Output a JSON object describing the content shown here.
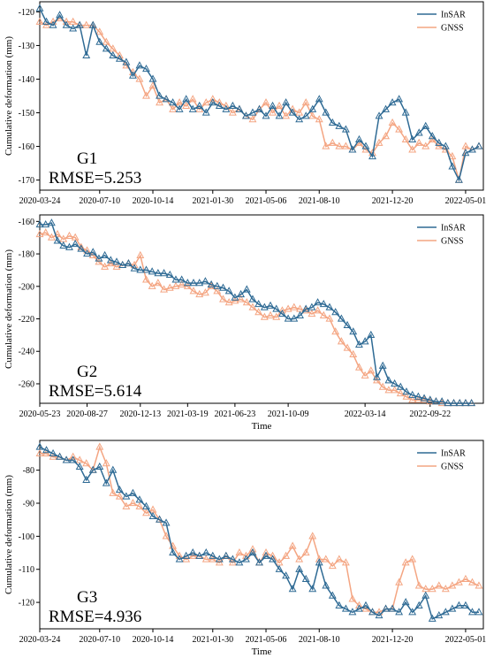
{
  "colors": {
    "insar": "#2e6a94",
    "gnss": "#f4a582"
  },
  "chart_data": [
    {
      "type": "line",
      "xlabel": "",
      "ylabel": "Cumulative deformation (mm)",
      "annotation_name": "G1",
      "annotation_rmse": "RMSE=5.253",
      "ylim": [
        -173,
        -117
      ],
      "yticks": [
        -170,
        -160,
        -150,
        -140,
        -130,
        -120
      ],
      "xlim": [
        0,
        800
      ],
      "xticks": [
        {
          "x": 0,
          "label": "2020-03-24"
        },
        {
          "x": 108,
          "label": "2020-07-10"
        },
        {
          "x": 204,
          "label": "2020-10-14"
        },
        {
          "x": 312,
          "label": "2021-01-30"
        },
        {
          "x": 408,
          "label": "2021-05-06"
        },
        {
          "x": 504,
          "label": "2021-08-10"
        },
        {
          "x": 636,
          "label": "2021-12-20"
        },
        {
          "x": 768,
          "label": "2022-05-01"
        }
      ],
      "legend": "upper-right",
      "grid": false,
      "series": [
        {
          "name": "InSAR",
          "color_key": "insar",
          "x": [
            0,
            12,
            24,
            36,
            48,
            60,
            72,
            84,
            96,
            108,
            120,
            132,
            144,
            156,
            168,
            180,
            192,
            204,
            216,
            228,
            240,
            252,
            264,
            276,
            288,
            300,
            312,
            324,
            336,
            348,
            360,
            372,
            384,
            396,
            408,
            420,
            432,
            444,
            456,
            468,
            480,
            492,
            504,
            516,
            528,
            540,
            552,
            564,
            576,
            588,
            600,
            612,
            624,
            636,
            648,
            660,
            672,
            684,
            696,
            708,
            720,
            732,
            744,
            756,
            768,
            780,
            792
          ],
          "values": [
            -119,
            -123,
            -124,
            -121,
            -124,
            -125,
            -124,
            -133,
            -124,
            -129,
            -131,
            -133,
            -134,
            -135,
            -139,
            -136,
            -137,
            -140,
            -145,
            -146,
            -147,
            -149,
            -146,
            -149,
            -148,
            -150,
            -147,
            -148,
            -149,
            -148,
            -149,
            -151,
            -150,
            -149,
            -151,
            -148,
            -151,
            -147,
            -150,
            -152,
            -151,
            -149,
            -146,
            -150,
            -153,
            -154,
            -155,
            -161,
            -158,
            -160,
            -163,
            -151,
            -149,
            -147,
            -146,
            -150,
            -158,
            -156,
            -154,
            -157,
            -159,
            -160,
            -166,
            -170,
            -162,
            -161,
            -160
          ]
        },
        {
          "name": "GNSS",
          "color_key": "gnss",
          "x": [
            0,
            12,
            24,
            36,
            48,
            60,
            72,
            84,
            96,
            108,
            120,
            132,
            144,
            156,
            168,
            180,
            192,
            204,
            216,
            228,
            240,
            252,
            264,
            276,
            288,
            300,
            312,
            324,
            336,
            348,
            360,
            372,
            384,
            396,
            408,
            420,
            432,
            444,
            456,
            468,
            480,
            492,
            504,
            516,
            528,
            540,
            552,
            564,
            576,
            588,
            600,
            612,
            624,
            636,
            648,
            660,
            672,
            684,
            696,
            708,
            720,
            732,
            744,
            756,
            768,
            780,
            792
          ],
          "values": [
            -123,
            -124,
            -123,
            -122,
            -123,
            -123,
            -124,
            -124,
            -124,
            -126,
            -129,
            -131,
            -133,
            -136,
            -138,
            -140,
            -145,
            -142,
            -147,
            -146,
            -149,
            -147,
            -148,
            -146,
            -149,
            -147,
            -146,
            -147,
            -148,
            -150,
            -149,
            -151,
            -152,
            -149,
            -147,
            -150,
            -148,
            -151,
            -149,
            -150,
            -147,
            -151,
            -152,
            -160,
            -159,
            -160,
            -160,
            -161,
            -159,
            -161,
            -162,
            -159,
            -157,
            -153,
            -155,
            -158,
            -161,
            -159,
            -160,
            -158,
            -160,
            -161,
            -163,
            -170,
            -160,
            -161,
            -160
          ]
        }
      ]
    },
    {
      "type": "line",
      "xlabel": "Time",
      "ylabel": "Cumulative deformation (mm)",
      "annotation_name": "G2",
      "annotation_rmse": "RMSE=5.614",
      "ylim": [
        -272,
        -156
      ],
      "yticks": [
        -260,
        -240,
        -220,
        -200,
        -180,
        -160
      ],
      "xlim": [
        0,
        900
      ],
      "xticks": [
        {
          "x": 0,
          "label": "2020-05-23"
        },
        {
          "x": 96,
          "label": "2020-08-27"
        },
        {
          "x": 204,
          "label": "2020-12-13"
        },
        {
          "x": 300,
          "label": "2021-03-19"
        },
        {
          "x": 396,
          "label": "2021-06-23"
        },
        {
          "x": 504,
          "label": "2021-10-09"
        },
        {
          "x": 660,
          "label": "2022-03-14"
        },
        {
          "x": 792,
          "label": "2022-09-22"
        }
      ],
      "legend": "upper-right",
      "grid": false,
      "series": [
        {
          "name": "InSAR",
          "color_key": "insar",
          "x": [
            0,
            12,
            24,
            36,
            48,
            60,
            72,
            84,
            96,
            108,
            120,
            132,
            144,
            156,
            168,
            180,
            192,
            204,
            216,
            228,
            240,
            252,
            264,
            276,
            288,
            300,
            312,
            324,
            336,
            348,
            360,
            372,
            384,
            396,
            408,
            420,
            432,
            444,
            456,
            468,
            480,
            492,
            504,
            516,
            528,
            540,
            552,
            564,
            576,
            588,
            600,
            612,
            624,
            636,
            648,
            660,
            672,
            684,
            696,
            708,
            720,
            732,
            744,
            756,
            768,
            780,
            792,
            804,
            816,
            828,
            840,
            852,
            864,
            876
          ],
          "values": [
            -162,
            -162,
            -161,
            -172,
            -175,
            -176,
            -174,
            -177,
            -180,
            -179,
            -183,
            -181,
            -184,
            -185,
            -187,
            -186,
            -189,
            -190,
            -190,
            -191,
            -192,
            -192,
            -193,
            -196,
            -196,
            -198,
            -198,
            -198,
            -197,
            -199,
            -200,
            -201,
            -203,
            -207,
            -205,
            -202,
            -208,
            -211,
            -213,
            -212,
            -214,
            -217,
            -220,
            -220,
            -218,
            -214,
            -213,
            -210,
            -211,
            -213,
            -216,
            -220,
            -224,
            -228,
            -236,
            -234,
            -230,
            -256,
            -249,
            -258,
            -260,
            -262,
            -265,
            -267,
            -268,
            -269,
            -270,
            -271,
            -271,
            -272,
            -272,
            -272,
            -272,
            -272
          ]
        },
        {
          "name": "GNSS",
          "color_key": "gnss",
          "x": [
            0,
            12,
            24,
            36,
            48,
            60,
            72,
            84,
            96,
            108,
            120,
            132,
            144,
            156,
            168,
            180,
            192,
            204,
            216,
            228,
            240,
            252,
            264,
            276,
            288,
            300,
            312,
            324,
            336,
            348,
            360,
            372,
            384,
            396,
            408,
            420,
            432,
            444,
            456,
            468,
            480,
            492,
            504,
            516,
            528,
            540,
            552,
            564,
            576,
            588,
            600,
            612,
            624,
            636,
            648,
            660,
            672,
            684,
            696,
            708,
            720,
            732,
            744,
            756,
            768,
            780,
            792,
            804,
            816,
            828,
            840,
            852,
            864,
            876
          ],
          "values": [
            -168,
            -167,
            -170,
            -168,
            -171,
            -169,
            -170,
            -176,
            -178,
            -181,
            -185,
            -188,
            -186,
            -188,
            -187,
            -186,
            -187,
            -181,
            -196,
            -200,
            -198,
            -202,
            -201,
            -200,
            -199,
            -200,
            -203,
            -205,
            -204,
            -200,
            -203,
            -208,
            -210,
            -209,
            -208,
            -210,
            -213,
            -216,
            -219,
            -218,
            -219,
            -215,
            -214,
            -213,
            -214,
            -215,
            -217,
            -215,
            -218,
            -220,
            -228,
            -234,
            -238,
            -242,
            -250,
            -255,
            -252,
            -258,
            -262,
            -264,
            -264,
            -266,
            -268,
            -270,
            -270,
            -270,
            -271,
            -271,
            -272,
            -272,
            -272,
            -272,
            -272,
            -272
          ]
        }
      ]
    },
    {
      "type": "line",
      "xlabel": "Time",
      "ylabel": "Cumulative deformation (mm)",
      "annotation_name": "G3",
      "annotation_rmse": "RMSE=4.936",
      "ylim": [
        -128,
        -71
      ],
      "yticks": [
        -120,
        -110,
        -100,
        -90,
        -80
      ],
      "xlim": [
        0,
        800
      ],
      "xticks": [
        {
          "x": 0,
          "label": "2020-03-24"
        },
        {
          "x": 108,
          "label": "2020-07-10"
        },
        {
          "x": 204,
          "label": "2020-10-14"
        },
        {
          "x": 312,
          "label": "2021-01-30"
        },
        {
          "x": 408,
          "label": "2021-05-06"
        },
        {
          "x": 504,
          "label": "2021-08-10"
        },
        {
          "x": 636,
          "label": "2021-12-20"
        },
        {
          "x": 768,
          "label": "2022-05-01"
        }
      ],
      "legend": "upper-right",
      "grid": false,
      "series": [
        {
          "name": "InSAR",
          "color_key": "insar",
          "x": [
            0,
            12,
            24,
            36,
            48,
            60,
            72,
            84,
            96,
            108,
            120,
            132,
            144,
            156,
            168,
            180,
            192,
            204,
            216,
            228,
            240,
            252,
            264,
            276,
            288,
            300,
            312,
            324,
            336,
            348,
            360,
            372,
            384,
            396,
            408,
            420,
            432,
            444,
            456,
            468,
            480,
            492,
            504,
            516,
            528,
            540,
            552,
            564,
            576,
            588,
            600,
            612,
            624,
            636,
            648,
            660,
            672,
            684,
            696,
            708,
            720,
            732,
            744,
            756,
            768,
            780,
            792
          ],
          "values": [
            -73,
            -74,
            -75,
            -76,
            -77,
            -77,
            -79,
            -83,
            -80,
            -79,
            -84,
            -80,
            -86,
            -88,
            -87,
            -89,
            -91,
            -94,
            -95,
            -96,
            -105,
            -107,
            -106,
            -105,
            -106,
            -105,
            -106,
            -107,
            -106,
            -107,
            -108,
            -107,
            -105,
            -108,
            -106,
            -107,
            -110,
            -112,
            -116,
            -110,
            -113,
            -116,
            -108,
            -115,
            -118,
            -121,
            -122,
            -123,
            -122,
            -121,
            -123,
            -124,
            -122,
            -122,
            -123,
            -120,
            -123,
            -121,
            -118,
            -125,
            -124,
            -123,
            -122,
            -121,
            -121,
            -123,
            -123
          ]
        },
        {
          "name": "GNSS",
          "color_key": "gnss",
          "x": [
            0,
            12,
            24,
            36,
            48,
            60,
            72,
            84,
            96,
            108,
            120,
            132,
            144,
            156,
            168,
            180,
            192,
            204,
            216,
            228,
            240,
            252,
            264,
            276,
            288,
            300,
            312,
            324,
            336,
            348,
            360,
            372,
            384,
            396,
            408,
            420,
            432,
            444,
            456,
            468,
            480,
            492,
            504,
            516,
            528,
            540,
            552,
            564,
            576,
            588,
            600,
            612,
            624,
            636,
            648,
            660,
            672,
            684,
            696,
            708,
            720,
            732,
            744,
            756,
            768,
            780,
            792
          ],
          "values": [
            -75,
            -75,
            -76,
            -76,
            -77,
            -76,
            -77,
            -78,
            -80,
            -73,
            -78,
            -87,
            -88,
            -91,
            -90,
            -91,
            -93,
            -92,
            -95,
            -100,
            -103,
            -106,
            -107,
            -106,
            -106,
            -107,
            -107,
            -108,
            -106,
            -108,
            -105,
            -106,
            -104,
            -108,
            -105,
            -106,
            -108,
            -106,
            -103,
            -107,
            -105,
            -100,
            -107,
            -107,
            -109,
            -107,
            -108,
            -119,
            -121,
            -122,
            -123,
            -123,
            -122,
            -122,
            -114,
            -108,
            -107,
            -115,
            -116,
            -116,
            -115,
            -116,
            -115,
            -114,
            -113,
            -114,
            -115
          ]
        }
      ]
    }
  ]
}
